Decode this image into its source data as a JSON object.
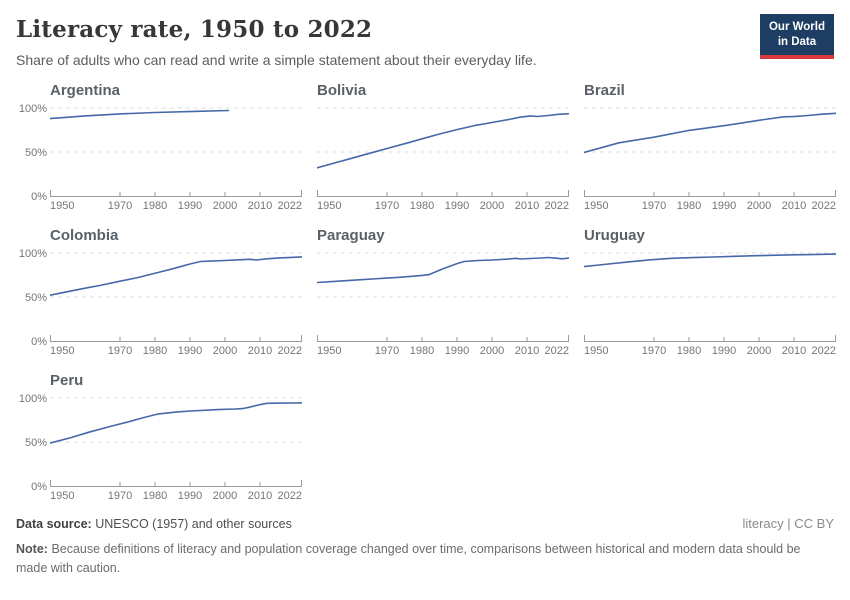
{
  "header": {
    "title": "Literacy rate, 1950 to 2022",
    "subtitle": "Share of adults who can read and write a simple statement about their everyday life.",
    "logo_line1": "Our World",
    "logo_line2": "in Data"
  },
  "charts_config": {
    "x_range": [
      1950,
      2022
    ],
    "ylim": [
      0,
      100
    ],
    "grid": true,
    "x_ticks": [
      "1950",
      "1970",
      "1980",
      "1990",
      "2000",
      "2010",
      "2022"
    ],
    "x_tick_marks": [
      1970,
      1980,
      1990,
      2000,
      2010
    ],
    "y_ticks": [
      {
        "label": "100%",
        "value": 100
      },
      {
        "label": "50%",
        "value": 50
      },
      {
        "label": "0%",
        "value": 0
      }
    ]
  },
  "chart_data": [
    {
      "type": "line",
      "title": "Argentina",
      "unit": "%",
      "x": [
        1950,
        1960,
        1970,
        1980,
        1991,
        2001
      ],
      "y": [
        88.0,
        91.0,
        93.3,
        94.9,
        96.1,
        97.2
      ]
    },
    {
      "type": "line",
      "title": "Bolivia",
      "unit": "%",
      "x": [
        1950,
        1955,
        1960,
        1965,
        1970,
        1976,
        1980,
        1985,
        1990,
        1995,
        2000,
        2005,
        2008,
        2011,
        2013,
        2016,
        2019,
        2022
      ],
      "y": [
        32.0,
        37.5,
        43.0,
        48.5,
        54.0,
        60.5,
        65.0,
        70.5,
        75.5,
        80.0,
        83.5,
        87.0,
        89.5,
        91.0,
        90.3,
        91.5,
        92.8,
        93.5
      ]
    },
    {
      "type": "line",
      "title": "Brazil",
      "unit": "%",
      "x": [
        1950,
        1960,
        1970,
        1980,
        1991,
        2000,
        2007,
        2010,
        2014,
        2018,
        2022
      ],
      "y": [
        49.4,
        60.5,
        66.8,
        74.6,
        80.5,
        86.0,
        90.0,
        90.2,
        91.5,
        93.0,
        94.0
      ]
    },
    {
      "type": "line",
      "title": "Colombia",
      "unit": "%",
      "x": [
        1950,
        1955,
        1960,
        1964,
        1970,
        1975,
        1981,
        1985,
        1990,
        1993,
        1996,
        2000,
        2004,
        2007,
        2009,
        2012,
        2015,
        2018,
        2022
      ],
      "y": [
        52.0,
        56.0,
        60.0,
        63.0,
        68.0,
        72.0,
        78.0,
        82.0,
        87.5,
        90.3,
        90.8,
        91.5,
        92.3,
        92.8,
        92.1,
        93.4,
        94.2,
        94.8,
        95.6
      ]
    },
    {
      "type": "line",
      "title": "Paraguay",
      "unit": "%",
      "x": [
        1950,
        1956,
        1962,
        1968,
        1974,
        1980,
        1982,
        1986,
        1990,
        1992,
        1996,
        2000,
        2004,
        2007,
        2008,
        2011,
        2014,
        2016,
        2018,
        2020,
        2022
      ],
      "y": [
        66.5,
        68.0,
        69.5,
        71.0,
        72.5,
        74.5,
        75.5,
        82.0,
        88.0,
        90.3,
        91.5,
        92.1,
        93.0,
        94.0,
        93.2,
        93.8,
        94.3,
        94.9,
        94.2,
        93.4,
        94.2
      ]
    },
    {
      "type": "line",
      "title": "Uruguay",
      "unit": "%",
      "x": [
        1950,
        1957,
        1963,
        1969,
        1975,
        1981,
        1987,
        1993,
        1999,
        2005,
        2010,
        2015,
        2022
      ],
      "y": [
        84.5,
        87.5,
        90.0,
        92.3,
        94.0,
        94.8,
        95.5,
        96.3,
        96.9,
        97.5,
        98.0,
        98.2,
        98.7
      ]
    },
    {
      "type": "line",
      "title": "Peru",
      "unit": "%",
      "x": [
        1950,
        1956,
        1961,
        1967,
        1972,
        1977,
        1981,
        1986,
        1990,
        1993,
        1998,
        2003,
        2005,
        2007,
        2010,
        2012,
        2016,
        2020,
        2022
      ],
      "y": [
        48.7,
        55.0,
        61.0,
        67.5,
        72.5,
        78.0,
        81.9,
        84.0,
        85.2,
        85.8,
        86.8,
        87.5,
        87.9,
        89.5,
        92.5,
        94.0,
        94.2,
        94.3,
        94.5
      ]
    }
  ],
  "footer": {
    "source_label": "Data source:",
    "source_text": "UNESCO (1957) and other sources",
    "license": "literacy | CC BY",
    "note_label": "Note:",
    "note_text": "Because definitions of literacy and population coverage changed over time, comparisons between historical and modern data should be made with caution."
  },
  "colors": {
    "line": "#4668a8",
    "gridline": "#d9d9d9",
    "axis": "#9a9a9a",
    "logo_bg": "#1d3d63",
    "logo_red": "#d7383c"
  }
}
